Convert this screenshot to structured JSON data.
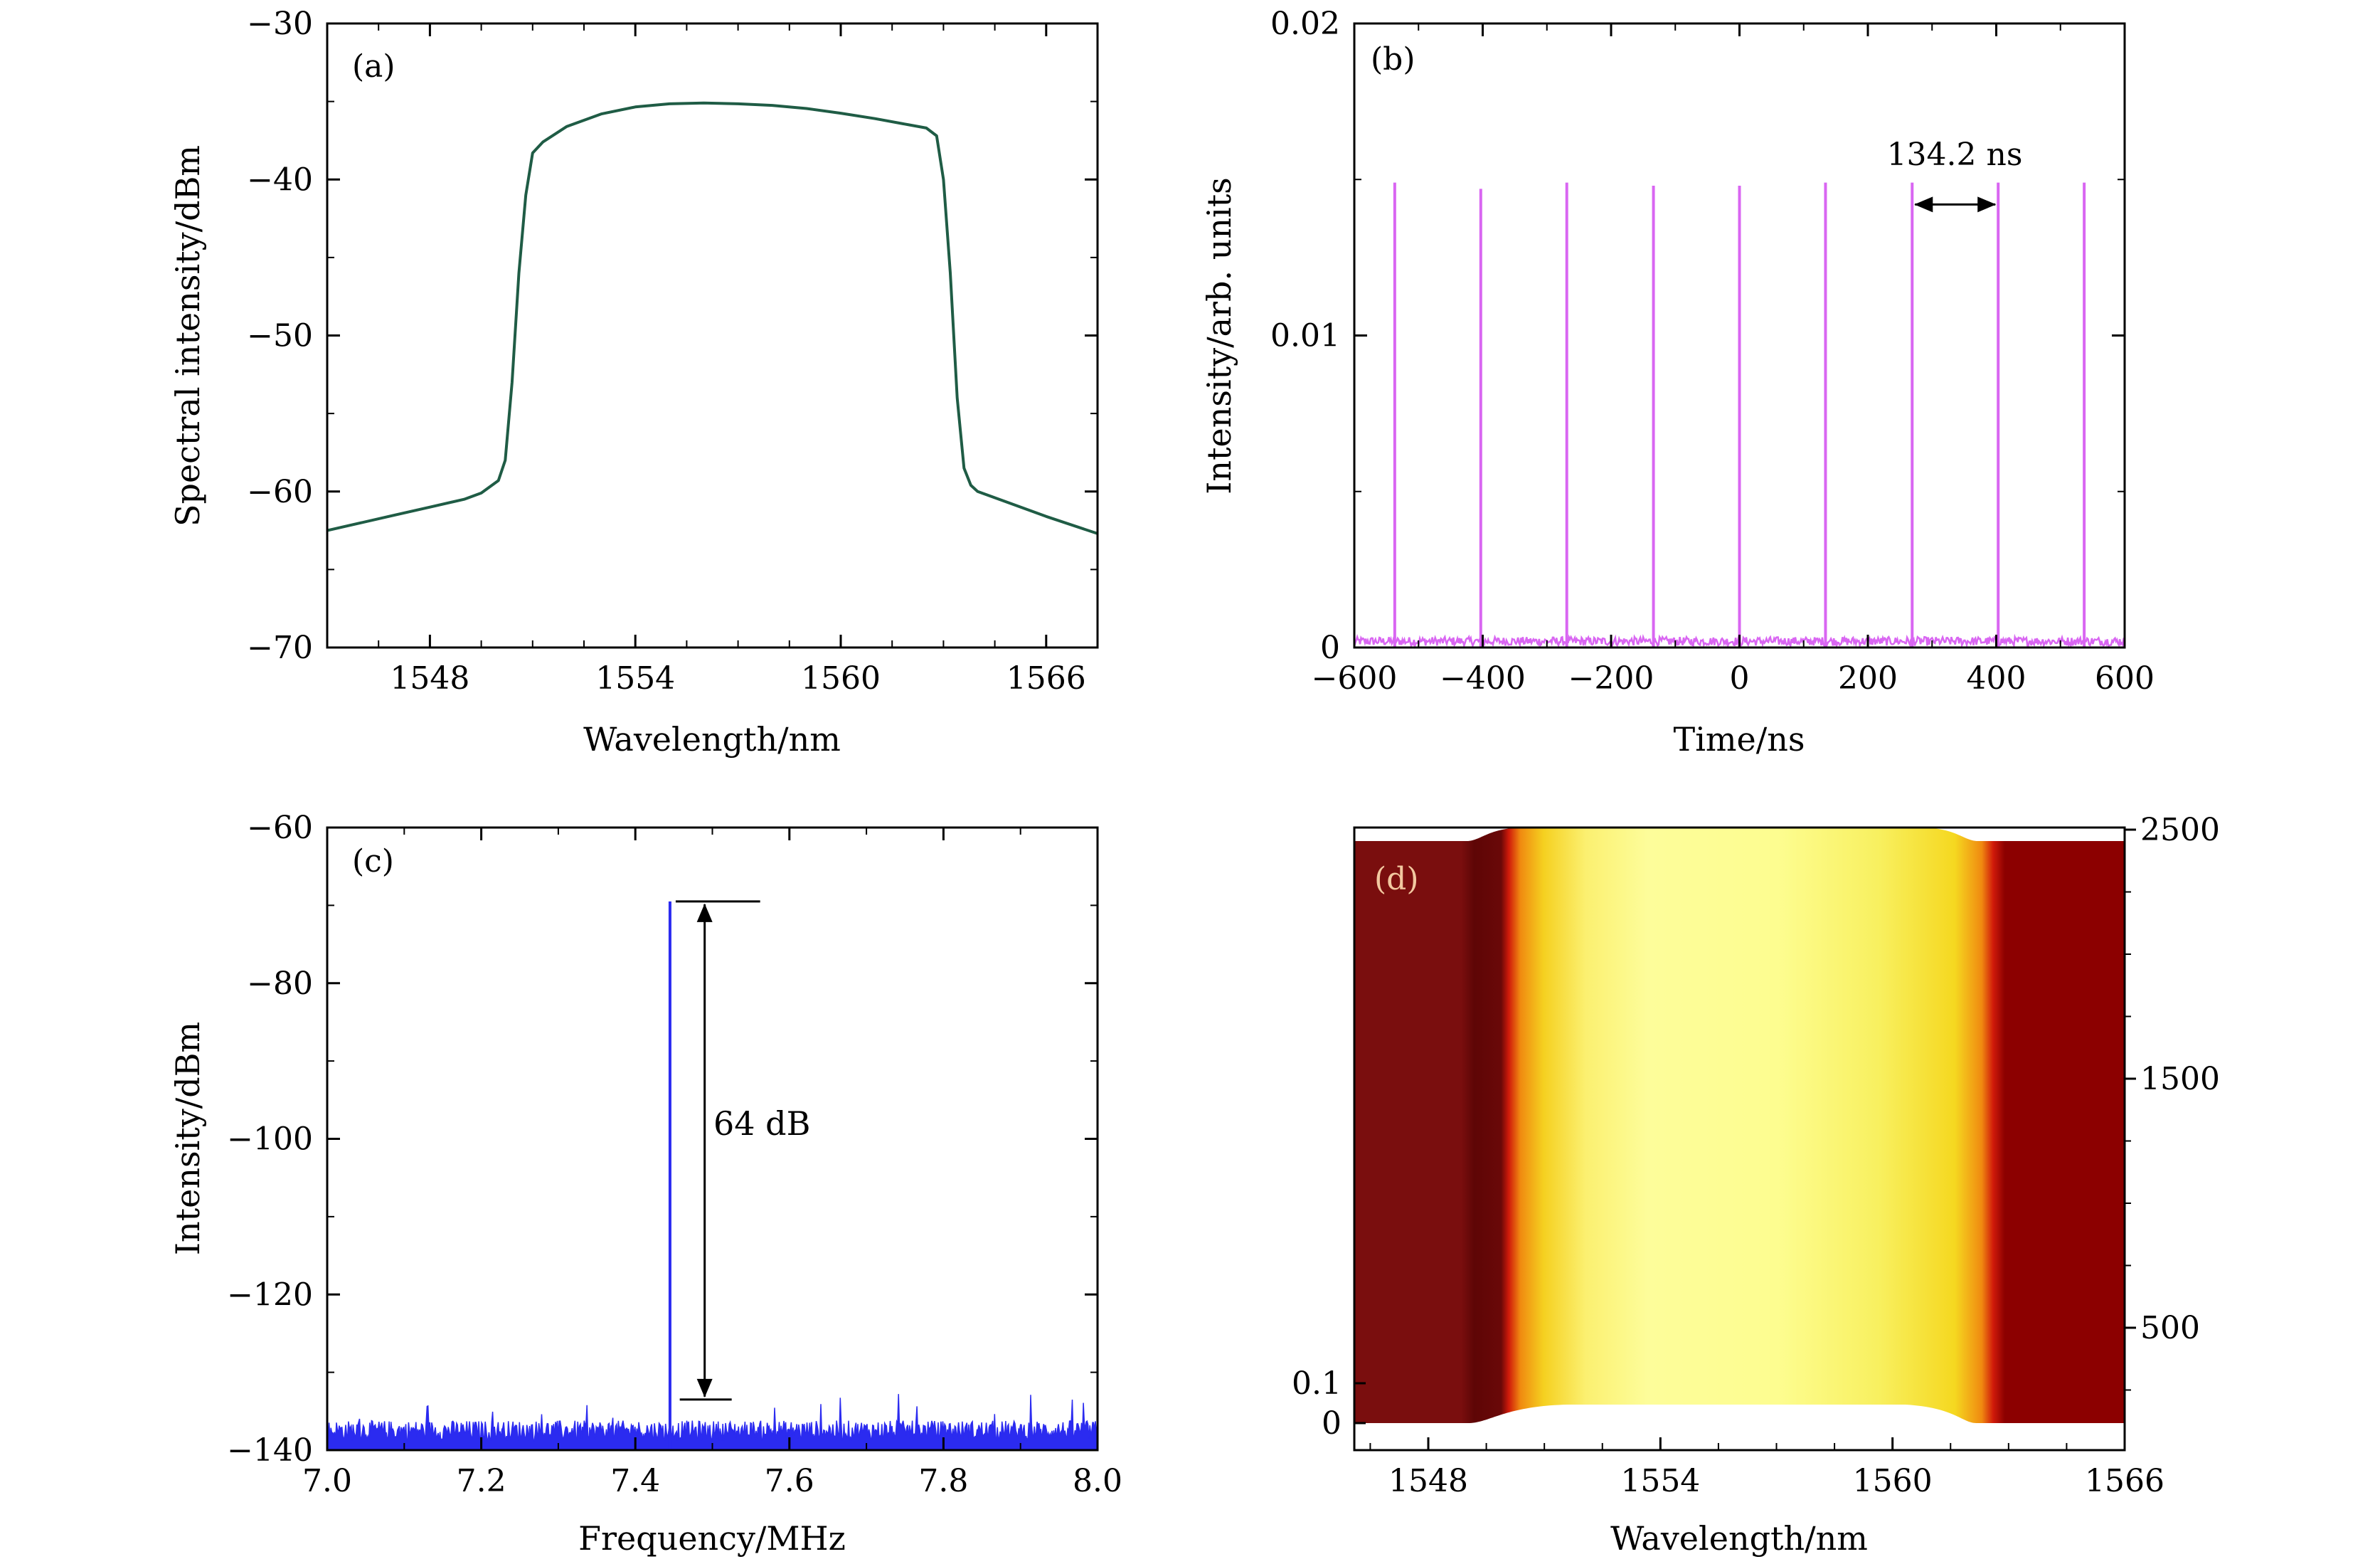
{
  "chart_data": [
    {
      "id": "a",
      "panel_label": "(a)",
      "type": "line",
      "xlabel": "Wavelength/nm",
      "ylabel": "Spectral intensity/dBm",
      "xlim": [
        1545,
        1567.5
      ],
      "ylim": [
        -70,
        -30
      ],
      "xticks": [
        1548,
        1554,
        1560,
        1566
      ],
      "xtick_labels": [
        "1548",
        "1554",
        "1560",
        "1566"
      ],
      "yticks": [
        -70,
        -60,
        -50,
        -40,
        -30
      ],
      "ytick_labels": [
        "−70",
        "−60",
        "−50",
        "−40",
        "−30"
      ],
      "grid": false,
      "series": [
        {
          "color": "#1f5c45",
          "x": [
            1545,
            1546,
            1547,
            1548,
            1549,
            1549.5,
            1550,
            1550.2,
            1550.4,
            1550.6,
            1550.8,
            1551,
            1551.3,
            1552,
            1553,
            1554,
            1555,
            1556,
            1557,
            1558,
            1559,
            1560,
            1561,
            1562,
            1562.5,
            1562.8,
            1563,
            1563.2,
            1563.4,
            1563.6,
            1563.8,
            1564,
            1564.5,
            1565,
            1566,
            1567.5
          ],
          "y": [
            -62.5,
            -62.0,
            -61.5,
            -61.0,
            -60.5,
            -60.1,
            -59.3,
            -58.0,
            -53.0,
            -46.0,
            -41.0,
            -38.3,
            -37.6,
            -36.6,
            -35.8,
            -35.35,
            -35.15,
            -35.1,
            -35.15,
            -35.25,
            -35.45,
            -35.75,
            -36.1,
            -36.5,
            -36.7,
            -37.2,
            -40.0,
            -46.0,
            -54.0,
            -58.5,
            -59.6,
            -60.0,
            -60.4,
            -60.8,
            -61.6,
            -62.7
          ]
        }
      ]
    },
    {
      "id": "b",
      "panel_label": "(b)",
      "type": "line",
      "xlabel": "Time/ns",
      "ylabel": "Intensity/arb. units",
      "xlim": [
        -600,
        600
      ],
      "ylim": [
        0,
        0.02
      ],
      "xticks": [
        -600,
        -400,
        -200,
        0,
        200,
        400,
        600
      ],
      "xtick_labels": [
        "−600",
        "−400",
        "−200",
        "0",
        "200",
        "400",
        "600"
      ],
      "yticks": [
        0,
        0.01,
        0.02
      ],
      "ytick_labels": [
        "0",
        "0.01",
        "0.02"
      ],
      "grid": false,
      "series": [
        {
          "color": "#d966f2",
          "pulse_times": [
            -537,
            -403,
            -269,
            -134,
            0,
            134,
            269,
            403,
            537
          ],
          "pulse_heights": [
            0.0149,
            0.0147,
            0.0149,
            0.0148,
            0.0148,
            0.0149,
            0.0149,
            0.0149,
            0.0149
          ],
          "baseline": 0.0002
        }
      ],
      "annotations": [
        {
          "text": "134.2 ns",
          "x1": 269,
          "x2": 403,
          "y": 0.0142
        }
      ]
    },
    {
      "id": "c",
      "panel_label": "(c)",
      "type": "line",
      "xlabel": "Frequency/MHz",
      "ylabel": "Intensity/dBm",
      "xlim": [
        7.0,
        8.0
      ],
      "ylim": [
        -140,
        -60
      ],
      "xticks": [
        7.0,
        7.2,
        7.4,
        7.6,
        7.8,
        8.0
      ],
      "xtick_labels": [
        "7.0",
        "7.2",
        "7.4",
        "7.6",
        "7.8",
        "8.0"
      ],
      "yticks": [
        -140,
        -120,
        -100,
        -80,
        -60
      ],
      "ytick_labels": [
        "−140",
        "−120",
        "−100",
        "−80",
        "−60"
      ],
      "grid": false,
      "series": [
        {
          "color": "#2b2bf0",
          "peak_x": 7.445,
          "peak_y": -69.5,
          "noise_floor": -137.5
        }
      ],
      "annotations": [
        {
          "text": "64 dB",
          "x": 7.49,
          "y_top": -69.5,
          "y_bottom": -133.5
        }
      ]
    },
    {
      "id": "d",
      "panel_label": "(d)",
      "type": "heatmap",
      "xlabel": "Wavelength/nm",
      "xlim": [
        1546,
        1566
      ],
      "xticks": [
        1548,
        1554,
        1560,
        1566
      ],
      "xtick_labels": [
        "1548",
        "1554",
        "1560",
        "1566"
      ],
      "yticks_left": [
        0,
        0.1
      ],
      "ytick_labels_left": [
        "0",
        "0.1"
      ],
      "yticks_right": [
        500,
        1500,
        2500
      ],
      "ytick_labels_right": [
        "500",
        "1500",
        "2500"
      ],
      "colors": {
        "dark": "#7a0e0e",
        "edge": "#8c0000",
        "red": "#d01a0a",
        "orange": "#f08a10",
        "yellow": "#f5e020",
        "light": "#fdfd9a"
      }
    }
  ]
}
